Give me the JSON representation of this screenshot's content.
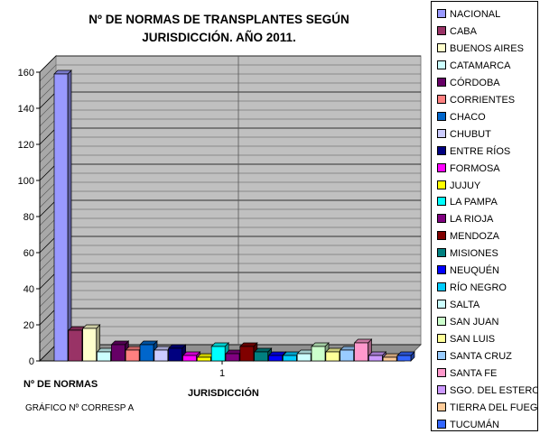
{
  "chart_data": {
    "type": "bar",
    "title": [
      "Nº DE NORMAS DE TRANSPLANTES SEGÚN",
      "JURISDICCIÓN. AÑO 2011."
    ],
    "ylabel": "Nº DE NORMAS",
    "xlabel": "JURISDICCIÓN",
    "note": "GRÁFICO Nº CORRESP A",
    "categories": [
      "1"
    ],
    "ylim": [
      0,
      160
    ],
    "yticks": [
      0,
      20,
      40,
      60,
      80,
      100,
      120,
      140,
      160
    ],
    "grid": true,
    "legend_position": "right",
    "series": [
      {
        "name": "NACIONAL",
        "value": 159,
        "color": "#9999ff"
      },
      {
        "name": "CABA",
        "value": 17,
        "color": "#993366"
      },
      {
        "name": "BUENOS AIRES",
        "value": 18,
        "color": "#ffffcc"
      },
      {
        "name": "CATAMARCA",
        "value": 5,
        "color": "#ccffff"
      },
      {
        "name": "CÓRDOBA",
        "value": 9,
        "color": "#660066"
      },
      {
        "name": "CORRIENTES",
        "value": 6,
        "color": "#ff8080"
      },
      {
        "name": "CHACO",
        "value": 9,
        "color": "#0066cc"
      },
      {
        "name": "CHUBUT",
        "value": 6,
        "color": "#ccccff"
      },
      {
        "name": "ENTRE RÍOS",
        "value": 7,
        "color": "#000080"
      },
      {
        "name": "FORMOSA",
        "value": 3,
        "color": "#ff00ff"
      },
      {
        "name": "JUJUY",
        "value": 2,
        "color": "#ffff00"
      },
      {
        "name": "LA PAMPA",
        "value": 8,
        "color": "#00ffff"
      },
      {
        "name": "LA RIOJA",
        "value": 4,
        "color": "#800080"
      },
      {
        "name": "MENDOZA",
        "value": 8,
        "color": "#800000"
      },
      {
        "name": "MISIONES",
        "value": 5,
        "color": "#008080"
      },
      {
        "name": "NEUQUÉN",
        "value": 3,
        "color": "#0000ff"
      },
      {
        "name": "RÍO NEGRO",
        "value": 3,
        "color": "#00ccff"
      },
      {
        "name": "SALTA",
        "value": 4,
        "color": "#ccffff"
      },
      {
        "name": "SAN JUAN",
        "value": 8,
        "color": "#ccffcc"
      },
      {
        "name": "SAN LUIS",
        "value": 5,
        "color": "#ffff99"
      },
      {
        "name": "SANTA CRUZ",
        "value": 6,
        "color": "#99ccff"
      },
      {
        "name": "SANTA FE",
        "value": 10,
        "color": "#ff99cc"
      },
      {
        "name": "SGO. DEL ESTERO",
        "value": 3,
        "color": "#cc99ff"
      },
      {
        "name": "TIERRA DEL FUEGO",
        "value": 2,
        "color": "#ffcc99"
      },
      {
        "name": "TUCUMÁN",
        "value": 3,
        "color": "#3366ff"
      }
    ]
  }
}
